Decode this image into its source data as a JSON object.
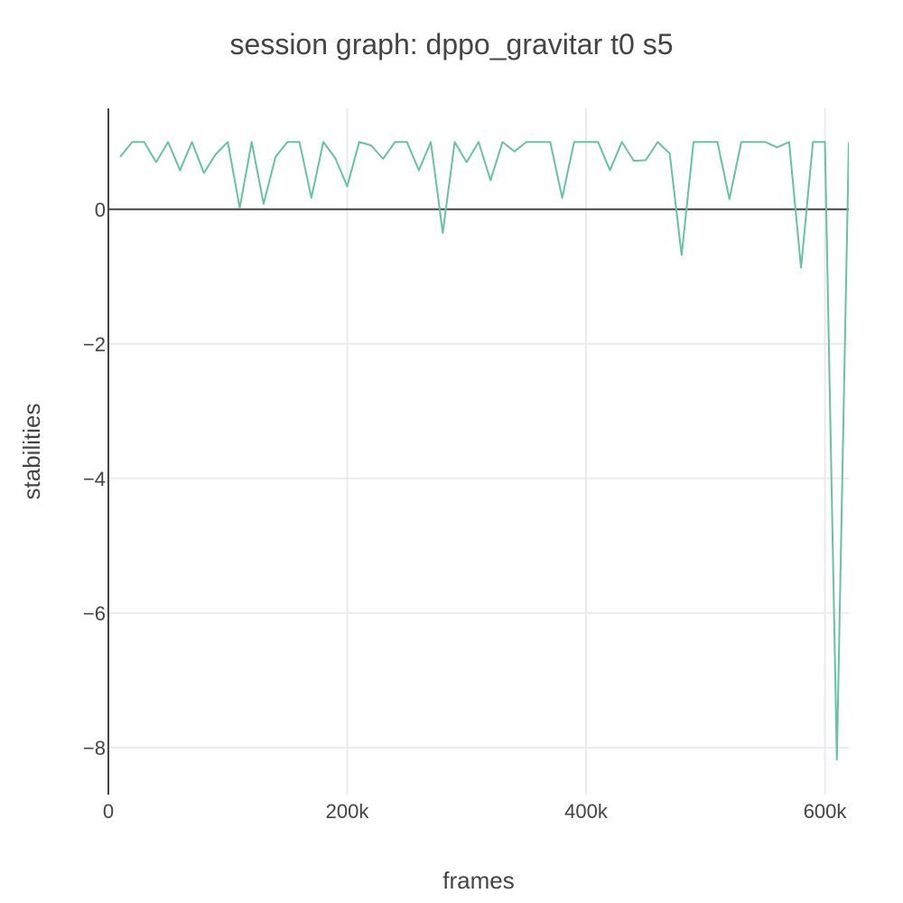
{
  "chart_data": {
    "type": "line",
    "title": "session graph: dppo_gravitar t0 s5",
    "xlabel": "frames",
    "ylabel": "stabilities",
    "xlim": [
      0,
      620000
    ],
    "ylim": [
      -8.7,
      1.5
    ],
    "x_ticks": [
      {
        "value": 0,
        "label": "0"
      },
      {
        "value": 200000,
        "label": "200k"
      },
      {
        "value": 400000,
        "label": "400k"
      },
      {
        "value": 600000,
        "label": "600k"
      }
    ],
    "y_ticks": [
      {
        "value": 0,
        "label": "0"
      },
      {
        "value": -2,
        "label": "−2"
      },
      {
        "value": -4,
        "label": "−4"
      },
      {
        "value": -6,
        "label": "−6"
      },
      {
        "value": -8,
        "label": "−8"
      }
    ],
    "grid": true,
    "legend": "none",
    "series": [
      {
        "color": "#66c2a5",
        "x": [
          10000,
          20000,
          30000,
          40000,
          50000,
          60000,
          70000,
          80000,
          90000,
          100000,
          110000,
          120000,
          130000,
          140000,
          150000,
          160000,
          170000,
          180000,
          190000,
          200000,
          210000,
          220000,
          230000,
          240000,
          250000,
          260000,
          270000,
          280000,
          290000,
          300000,
          310000,
          320000,
          330000,
          340000,
          350000,
          360000,
          370000,
          380000,
          390000,
          400000,
          410000,
          420000,
          430000,
          440000,
          450000,
          460000,
          470000,
          480000,
          490000,
          500000,
          510000,
          520000,
          530000,
          540000,
          550000,
          560000,
          570000,
          580000,
          590000,
          600000,
          610000,
          620000
        ],
        "y": [
          0.78,
          1.0,
          1.0,
          0.7,
          1.0,
          0.58,
          1.0,
          0.54,
          0.82,
          1.0,
          0.02,
          1.0,
          0.08,
          0.78,
          1.0,
          1.0,
          0.17,
          1.0,
          0.76,
          0.34,
          1.0,
          0.95,
          0.75,
          1.0,
          1.0,
          0.58,
          1.0,
          -0.35,
          1.0,
          0.7,
          1.0,
          0.43,
          1.0,
          0.86,
          1.0,
          1.0,
          1.0,
          0.17,
          1.0,
          1.0,
          1.0,
          0.58,
          1.0,
          0.72,
          0.73,
          1.0,
          0.83,
          -0.68,
          1.0,
          1.0,
          1.0,
          0.15,
          1.0,
          1.0,
          1.0,
          0.92,
          1.0,
          -0.87,
          1.0,
          1.0,
          -8.18,
          1.0
        ]
      }
    ]
  }
}
